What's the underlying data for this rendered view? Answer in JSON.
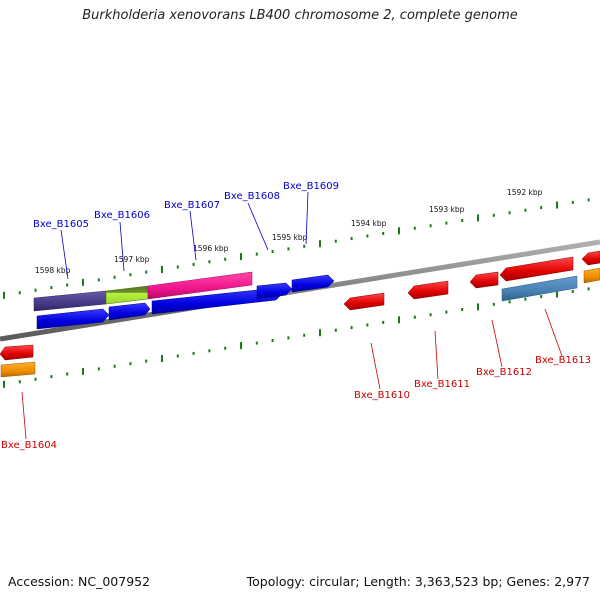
{
  "title": "Burkholderia xenovorans LB400 chromosome 2, complete genome",
  "footer": {
    "accession": "Accession: NC_007952",
    "summary": "Topology: circular; Length: 3,363,523 bp; Genes: 2,977"
  },
  "scale": {
    "unit": "kbp",
    "tick_labels": [
      "1598 kbp",
      "1597 kbp",
      "1596 kbp",
      "1595 kbp",
      "1594 kbp",
      "1593 kbp",
      "1592 kbp"
    ]
  },
  "colors": {
    "forward_label": "#0000cc",
    "reverse_label": "#cc0000",
    "backbone": "#808080",
    "tick": "#1a7a1a"
  },
  "genes": [
    {
      "name": "Bxe_B1604",
      "strand": "reverse"
    },
    {
      "name": "Bxe_B1605",
      "strand": "forward"
    },
    {
      "name": "Bxe_B1606",
      "strand": "forward"
    },
    {
      "name": "Bxe_B1607",
      "strand": "forward"
    },
    {
      "name": "Bxe_B1608",
      "strand": "forward"
    },
    {
      "name": "Bxe_B1609",
      "strand": "forward"
    },
    {
      "name": "Bxe_B1610",
      "strand": "reverse"
    },
    {
      "name": "Bxe_B1611",
      "strand": "reverse"
    },
    {
      "name": "Bxe_B1612",
      "strand": "reverse"
    },
    {
      "name": "Bxe_B1613",
      "strand": "reverse"
    }
  ]
}
